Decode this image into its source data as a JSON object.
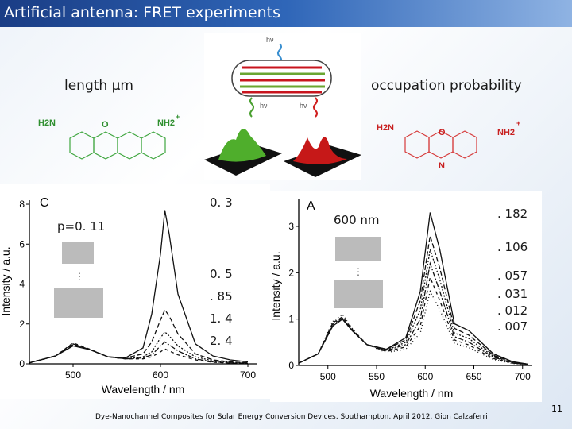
{
  "title": "Artificial antenna: FRET experiments",
  "labels": {
    "length": "length μm",
    "occupation": "occupation probability",
    "p_value": "p=0. 11",
    "nm600": "600 nm"
  },
  "structures": {
    "left": {
      "h2n": "H2N",
      "o": "O",
      "nh2": "NH2",
      "plus": "+"
    },
    "right": {
      "h2n": "H2N",
      "o": "O",
      "nh2": "NH2",
      "plus": "+",
      "n": "N"
    }
  },
  "illustration": {
    "hv_top": "hν",
    "hv_left": "hν",
    "hv_right": "hν"
  },
  "panel_c": {
    "letter": "C",
    "xlabel": "Wavelength / nm",
    "ylabel": "Intensity / a.u.",
    "xticks": [
      "500",
      "600",
      "700"
    ],
    "yticks": [
      "0",
      "2",
      "4",
      "6",
      "8"
    ],
    "annotations": [
      "0. 3",
      "0. 5",
      ". 85",
      "1. 4",
      "2. 4"
    ]
  },
  "panel_a": {
    "letter": "A",
    "xlabel": "Wavelength / nm",
    "ylabel": "Intensity / a.u.",
    "xticks": [
      "500",
      "550",
      "600",
      "650",
      "700"
    ],
    "yticks": [
      "0",
      "1",
      "2",
      "3"
    ],
    "annotations": [
      ". 182",
      ". 106",
      ". 057",
      ". 031",
      ". 012",
      ". 007"
    ]
  },
  "chart_data": [
    {
      "type": "line",
      "xlim": [
        450,
        710
      ],
      "ylim": [
        0,
        8.2
      ],
      "series": [
        {
          "x": [
            450,
            480,
            500,
            520,
            540,
            560,
            580,
            590,
            600,
            605,
            610,
            620,
            640,
            660,
            680,
            700
          ],
          "y": [
            0.05,
            0.4,
            0.9,
            0.7,
            0.35,
            0.3,
            0.8,
            2.5,
            5.5,
            7.7,
            6.5,
            3.5,
            1.0,
            0.4,
            0.2,
            0.1
          ]
        },
        {
          "x": [
            450,
            480,
            500,
            520,
            540,
            560,
            580,
            590,
            600,
            605,
            610,
            620,
            640,
            660,
            680,
            700
          ],
          "y": [
            0.05,
            0.4,
            0.95,
            0.7,
            0.35,
            0.3,
            0.5,
            1.1,
            2.2,
            2.7,
            2.4,
            1.5,
            0.5,
            0.2,
            0.1,
            0.05
          ]
        },
        {
          "x": [
            450,
            480,
            500,
            520,
            540,
            560,
            580,
            590,
            600,
            605,
            610,
            620,
            640,
            660,
            680,
            700
          ],
          "y": [
            0.05,
            0.4,
            1.0,
            0.7,
            0.35,
            0.25,
            0.35,
            0.6,
            1.3,
            1.6,
            1.4,
            0.9,
            0.35,
            0.15,
            0.08,
            0.04
          ]
        },
        {
          "x": [
            450,
            480,
            500,
            520,
            540,
            560,
            580,
            590,
            600,
            605,
            610,
            620,
            640,
            660,
            680,
            700
          ],
          "y": [
            0.05,
            0.4,
            1.0,
            0.7,
            0.35,
            0.25,
            0.3,
            0.45,
            0.9,
            1.1,
            0.95,
            0.65,
            0.25,
            0.1,
            0.05,
            0.03
          ]
        },
        {
          "x": [
            450,
            480,
            500,
            520,
            540,
            560,
            580,
            590,
            600,
            605,
            610,
            620,
            640,
            660,
            680,
            700
          ],
          "y": [
            0.05,
            0.4,
            1.05,
            0.72,
            0.35,
            0.25,
            0.25,
            0.35,
            0.6,
            0.75,
            0.65,
            0.45,
            0.2,
            0.08,
            0.04,
            0.02
          ]
        }
      ]
    },
    {
      "type": "line",
      "xlim": [
        470,
        710
      ],
      "ylim": [
        0,
        3.6
      ],
      "series": [
        {
          "x": [
            470,
            490,
            505,
            515,
            525,
            540,
            560,
            580,
            595,
            605,
            615,
            630,
            645,
            655,
            670,
            690,
            705
          ],
          "y": [
            0.05,
            0.25,
            0.85,
            1.0,
            0.75,
            0.45,
            0.35,
            0.6,
            1.6,
            3.3,
            2.5,
            0.9,
            0.75,
            0.55,
            0.25,
            0.08,
            0.03
          ]
        },
        {
          "x": [
            470,
            490,
            505,
            515,
            525,
            540,
            560,
            580,
            595,
            605,
            615,
            630,
            645,
            655,
            670,
            690,
            705
          ],
          "y": [
            0.05,
            0.25,
            0.85,
            1.0,
            0.75,
            0.45,
            0.35,
            0.55,
            1.4,
            2.8,
            2.1,
            0.8,
            0.65,
            0.48,
            0.22,
            0.07,
            0.03
          ]
        },
        {
          "x": [
            470,
            490,
            505,
            515,
            525,
            540,
            560,
            580,
            595,
            605,
            615,
            630,
            645,
            655,
            670,
            690,
            705
          ],
          "y": [
            0.05,
            0.25,
            0.87,
            1.0,
            0.75,
            0.45,
            0.33,
            0.5,
            1.2,
            2.5,
            1.85,
            0.7,
            0.58,
            0.42,
            0.2,
            0.06,
            0.02
          ]
        },
        {
          "x": [
            470,
            490,
            505,
            515,
            525,
            540,
            560,
            580,
            595,
            605,
            615,
            630,
            645,
            655,
            670,
            690,
            705
          ],
          "y": [
            0.05,
            0.25,
            0.9,
            1.02,
            0.76,
            0.45,
            0.32,
            0.45,
            1.0,
            2.2,
            1.6,
            0.62,
            0.5,
            0.37,
            0.18,
            0.05,
            0.02
          ]
        },
        {
          "x": [
            470,
            490,
            505,
            515,
            525,
            540,
            560,
            580,
            595,
            605,
            615,
            630,
            645,
            655,
            670,
            690,
            705
          ],
          "y": [
            0.05,
            0.25,
            0.92,
            1.05,
            0.78,
            0.45,
            0.3,
            0.4,
            0.85,
            1.9,
            1.4,
            0.55,
            0.44,
            0.32,
            0.15,
            0.05,
            0.02
          ]
        },
        {
          "x": [
            470,
            490,
            505,
            515,
            525,
            540,
            560,
            580,
            595,
            605,
            615,
            630,
            645,
            655,
            670,
            690,
            705
          ],
          "y": [
            0.05,
            0.25,
            0.95,
            1.1,
            0.8,
            0.45,
            0.28,
            0.35,
            0.7,
            1.6,
            1.2,
            0.48,
            0.38,
            0.28,
            0.13,
            0.04,
            0.02
          ]
        }
      ]
    }
  ],
  "footer": "Dye-Nanochannel Composites for Solar Energy Conversion Devices, Southampton, April 2012, Gion Calzaferri",
  "page_number": "11"
}
